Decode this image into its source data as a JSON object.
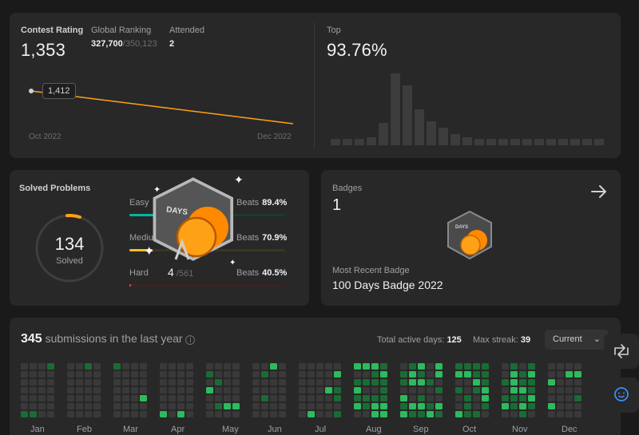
{
  "contest": {
    "rating_label": "Contest Rating",
    "rating": "1,353",
    "global_ranking_label": "Global Ranking",
    "global_ranking": "327,700",
    "global_total": "/350,123",
    "attended_label": "Attended",
    "attended": "2",
    "tooltip": "1,412",
    "x_start": "Oct 2022",
    "x_end": "Dec 2022",
    "top_label": "Top",
    "top_value": "93.76%"
  },
  "solved": {
    "title": "Solved Problems",
    "count": "134",
    "sub": "Solved",
    "rows": [
      {
        "label": "Easy",
        "beats_label": "Beats",
        "beats": "89.4%",
        "color": "#00b8a3",
        "fill": 0.2
      },
      {
        "label": "Medium",
        "beats_label": "Beats",
        "beats": "70.9%",
        "color": "#ffc01e",
        "fill": 0.15
      },
      {
        "label": "Hard",
        "solved": "4",
        "total": "/561",
        "beats_label": "Beats",
        "beats": "40.5%",
        "color": "#ef4743",
        "fill": 0.01
      }
    ]
  },
  "badges": {
    "title": "Badges",
    "count": "1",
    "recent_label": "Most Recent Badge",
    "recent_name": "100 Days Badge 2022",
    "badge_text": "DAYS"
  },
  "subs": {
    "count": "345",
    "text": "submissions in the last year",
    "active_label": "Total active days:",
    "active": "125",
    "streak_label": "Max streak:",
    "streak": "39",
    "select": "Current",
    "months": [
      "Jan",
      "Feb",
      "Mar",
      "Apr",
      "May",
      "Jun",
      "Jul",
      "Aug",
      "Sep",
      "Oct",
      "Nov",
      "Dec"
    ]
  },
  "colors": {
    "accent": "#ffa116",
    "green_dark": "#0e4d1f",
    "green": "#2cbb5d"
  }
}
